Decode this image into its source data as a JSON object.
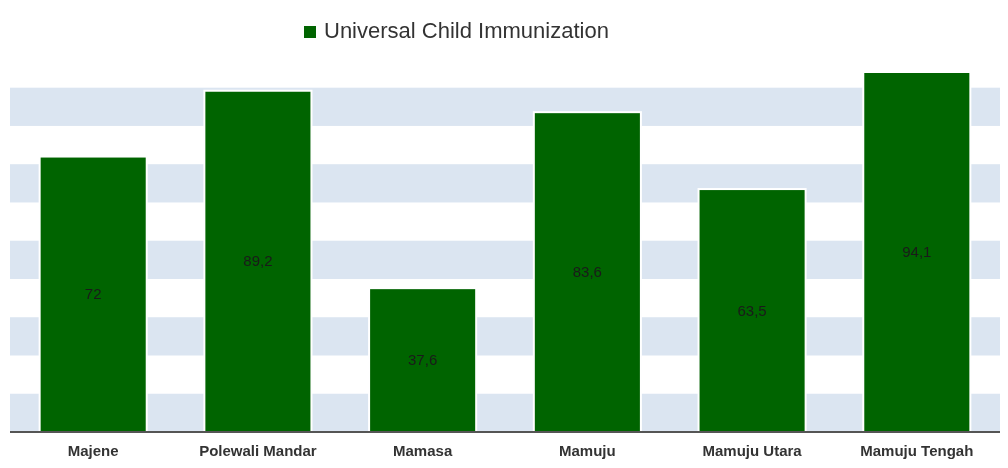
{
  "chart_data": {
    "type": "bar",
    "categories": [
      "Majene",
      "Polewali Mandar",
      "Mamasa",
      "Mamuju",
      "Mamuju Utara",
      "Mamuju Tengah"
    ],
    "series": [
      {
        "name": "Universal Child Immunization",
        "color": "#006400",
        "values": [
          72,
          89.2,
          37.6,
          83.6,
          63.5,
          94.1
        ],
        "value_labels": [
          "72",
          "89,2",
          "37,6",
          "83,6",
          "63,5",
          "94,1"
        ]
      }
    ],
    "bands": [
      {
        "axis": "y",
        "from": 0,
        "to": 10,
        "color": "#dbe5f1"
      },
      {
        "axis": "y",
        "from": 20,
        "to": 30,
        "color": "#dbe5f1"
      },
      {
        "axis": "y",
        "from": 40,
        "to": 50,
        "color": "#dbe5f1"
      },
      {
        "axis": "y",
        "from": 60,
        "to": 70,
        "color": "#dbe5f1"
      },
      {
        "axis": "y",
        "from": 80,
        "to": 90,
        "color": "#dbe5f1"
      }
    ],
    "legend": "top"
  }
}
